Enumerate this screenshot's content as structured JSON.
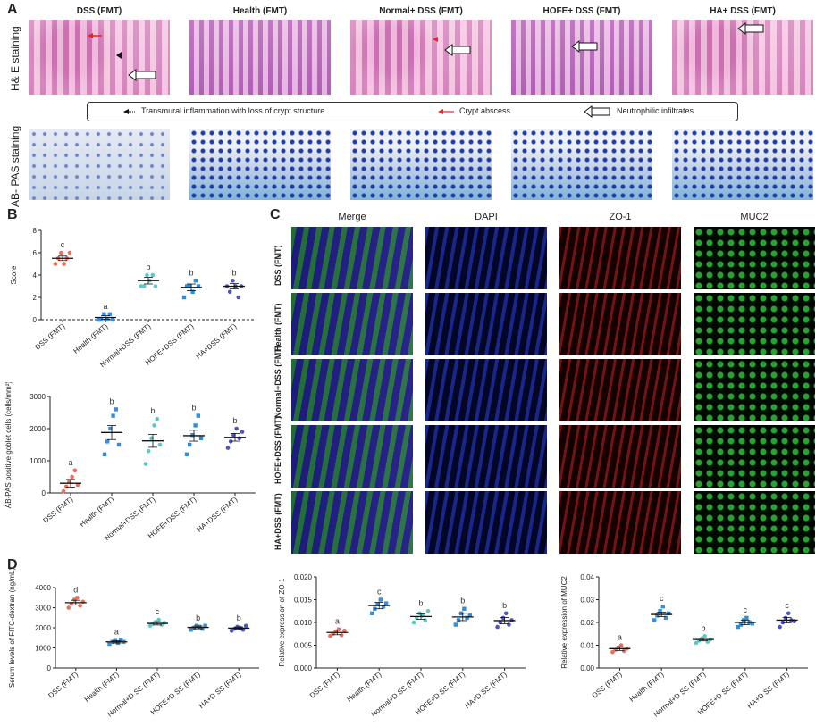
{
  "panels": {
    "A": "A",
    "B": "B",
    "C": "C",
    "D": "D"
  },
  "panelA": {
    "groups": [
      "DSS (FMT)",
      "Health (FMT)",
      "Normal+ DSS (FMT)",
      "HOFE+ DSS (FMT)",
      "HA+ DSS (FMT)"
    ],
    "row_he": "H& E staining",
    "row_pas": "AB- PAS staining",
    "legend": {
      "item1": "Transmural inflammation with loss of crypt structure",
      "item2": "Crypt abscess",
      "item3": "Neutrophilic infiltrates"
    }
  },
  "panelC": {
    "columns": [
      "Merge",
      "DAPI",
      "ZO-1",
      "MUC2"
    ],
    "rows": [
      "DSS (FMT)",
      "Health (FMT)",
      "Normal+DSS (FMT)",
      "HOFE+DSS (FMT)",
      "HA+DSS (FMT)"
    ]
  },
  "chart_data": [
    {
      "id": "score",
      "type": "scatter",
      "ylabel": "Score",
      "ylim": [
        0,
        8
      ],
      "yticks": [
        "0",
        "2",
        "4",
        "6",
        "8"
      ],
      "categories": [
        "DSS (FMT)",
        "Health (FMT)",
        "Normal+DSS (FMT)",
        "HOFE+DSS (FMT)",
        "HA+DSS (FMT)"
      ],
      "means": [
        5.5,
        0.2,
        3.5,
        2.9,
        3.0
      ],
      "sem": [
        0.2,
        0.15,
        0.3,
        0.3,
        0.25
      ],
      "letters": [
        "c",
        "a",
        "b",
        "b",
        "b"
      ],
      "points": [
        [
          5.0,
          5.5,
          6.0,
          5.0,
          5.5,
          6.0
        ],
        [
          0,
          0,
          0.5,
          0,
          0.5,
          0
        ],
        [
          3,
          3,
          4,
          3.5,
          4,
          3
        ],
        [
          2,
          3,
          3,
          2.5,
          3.5,
          3
        ],
        [
          3,
          2.5,
          3.5,
          3,
          2,
          3
        ]
      ],
      "colors": [
        "#f26b5b",
        "#3b8de0",
        "#5cc9c6",
        "#2e8fd6",
        "#4a55c8"
      ]
    },
    {
      "id": "goblet",
      "type": "scatter",
      "ylabel": "AB-PAS positive goblet cells (cells/mm²)",
      "ylim": [
        0,
        3000
      ],
      "yticks": [
        "0",
        "1000",
        "2000",
        "3000"
      ],
      "categories": [
        "DSS (FMT)",
        "Health (FMT)",
        "Normal+DSS (FMT)",
        "HOFE+DSS (FMT)",
        "HA+DSS (FMT)"
      ],
      "means": [
        300,
        1880,
        1620,
        1780,
        1730
      ],
      "sem": [
        120,
        220,
        200,
        170,
        120
      ],
      "letters": [
        "a",
        "b",
        "b",
        "b",
        "b"
      ],
      "points": [
        [
          50,
          200,
          350,
          500,
          700,
          250
        ],
        [
          1200,
          1600,
          2000,
          2400,
          2600,
          1500
        ],
        [
          900,
          1300,
          1700,
          2100,
          2300,
          1500
        ],
        [
          1200,
          1500,
          1800,
          2100,
          2400,
          1700
        ],
        [
          1400,
          1600,
          1800,
          2000,
          1700,
          1900
        ]
      ],
      "colors": [
        "#f26b5b",
        "#3b8de0",
        "#5cc9c6",
        "#2e8fd6",
        "#4a55c8"
      ]
    },
    {
      "id": "fitc",
      "type": "scatter",
      "ylabel": "Serum levels of FITC-dextran (ng/mL)",
      "ylim": [
        0,
        4000
      ],
      "yticks": [
        "0",
        "1000",
        "2000",
        "3000",
        "4000"
      ],
      "categories": [
        "DSS (FMT)",
        "Health (FMT)",
        "Normal+DSS (FMT)",
        "HOFE+DSS (FMT)",
        "HA+DSS (FMT)"
      ],
      "means": [
        3250,
        1300,
        2220,
        2020,
        1980
      ],
      "sem": [
        120,
        60,
        80,
        70,
        60
      ],
      "letters": [
        "d",
        "a",
        "c",
        "b",
        "b"
      ],
      "points": [
        [
          3000,
          3200,
          3400,
          3500,
          3100,
          3300
        ],
        [
          1200,
          1300,
          1350,
          1250,
          1400,
          1300
        ],
        [
          2100,
          2200,
          2300,
          2400,
          2150,
          2250
        ],
        [
          1900,
          2000,
          2100,
          2050,
          1950,
          2100
        ],
        [
          1850,
          1950,
          2050,
          2000,
          1900,
          2100
        ]
      ],
      "colors": [
        "#f26b5b",
        "#3b8de0",
        "#5cc9c6",
        "#2e8fd6",
        "#4a55c8"
      ]
    },
    {
      "id": "zo1",
      "type": "scatter",
      "ylabel": "Relative expression of ZO-1",
      "ylim": [
        0,
        0.02
      ],
      "yticks": [
        "0.000",
        "0.005",
        "0.010",
        "0.015",
        "0.020"
      ],
      "categories": [
        "DSS (FMT)",
        "Health (FMT)",
        "Normal+DSS (FMT)",
        "HOFE+DSS (FMT)",
        "HA+DSS (FMT)"
      ],
      "means": [
        0.0078,
        0.0137,
        0.0113,
        0.0112,
        0.0104
      ],
      "sem": [
        0.0005,
        0.0007,
        0.0006,
        0.0008,
        0.0007
      ],
      "letters": [
        "a",
        "c",
        "b",
        "b",
        "b"
      ],
      "points": [
        [
          0.007,
          0.0075,
          0.008,
          0.0085,
          0.0072,
          0.0082
        ],
        [
          0.012,
          0.013,
          0.014,
          0.015,
          0.0135,
          0.0142
        ],
        [
          0.01,
          0.011,
          0.012,
          0.0115,
          0.0105,
          0.0125
        ],
        [
          0.0095,
          0.0105,
          0.012,
          0.013,
          0.011,
          0.0115
        ],
        [
          0.009,
          0.01,
          0.011,
          0.012,
          0.0095,
          0.0105
        ]
      ],
      "colors": [
        "#f26b5b",
        "#3b8de0",
        "#5cc9c6",
        "#2e8fd6",
        "#4a55c8"
      ]
    },
    {
      "id": "muc2",
      "type": "scatter",
      "ylabel": "Relative expression of MUC2",
      "ylim": [
        0,
        0.04
      ],
      "yticks": [
        "0.00",
        "0.01",
        "0.02",
        "0.03",
        "0.04"
      ],
      "categories": [
        "DSS (FMT)",
        "Health (FMT)",
        "Normal+DSS (FMT)",
        "HOFE+DSS (FMT)",
        "HA+DSS (FMT)"
      ],
      "means": [
        0.0085,
        0.0235,
        0.0125,
        0.02,
        0.021
      ],
      "sem": [
        0.0008,
        0.001,
        0.0006,
        0.001,
        0.0012
      ],
      "letters": [
        "a",
        "c",
        "b",
        "c",
        "c"
      ],
      "points": [
        [
          0.007,
          0.008,
          0.009,
          0.01,
          0.0075,
          0.0085
        ],
        [
          0.021,
          0.023,
          0.025,
          0.027,
          0.022,
          0.024
        ],
        [
          0.011,
          0.012,
          0.013,
          0.014,
          0.0115,
          0.0125
        ],
        [
          0.018,
          0.019,
          0.021,
          0.022,
          0.02,
          0.0195
        ],
        [
          0.018,
          0.02,
          0.022,
          0.024,
          0.021,
          0.0205
        ]
      ],
      "colors": [
        "#f26b5b",
        "#3b8de0",
        "#5cc9c6",
        "#2e8fd6",
        "#4a55c8"
      ]
    }
  ],
  "ticklabels_fmt": [
    "DSS (FMT)",
    "Health (FMT)",
    "Normal+DSS (FMT)",
    "HOFE+DSS (FMT)",
    "HA+DSS (FMT)"
  ],
  "ticklabels_d": [
    "DSS (FMT)",
    "Health (FMT)",
    "Normal+D SS (FMT)",
    "HOFE+D SS (FMT)",
    "HA+D SS (FMT)"
  ]
}
